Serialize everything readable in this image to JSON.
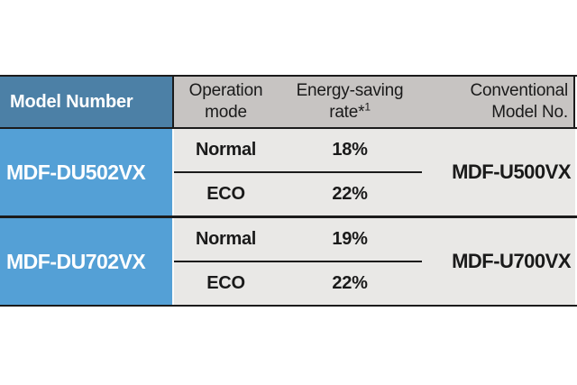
{
  "table": {
    "headers": {
      "model_number": "Model Number",
      "operation_mode_line1": "Operation",
      "operation_mode_line2": "mode",
      "energy_line1": "Energy-saving",
      "energy_line2_prefix": "rate*",
      "energy_footnote_sup": "1",
      "conventional_line1": "Conventional",
      "conventional_line2": "Model No."
    },
    "rows": [
      {
        "model": "MDF-DU502VX",
        "conventional": "MDF-U500VX",
        "modes": [
          {
            "label": "Normal",
            "rate": "18%"
          },
          {
            "label": "ECO",
            "rate": "22%"
          }
        ]
      },
      {
        "model": "MDF-DU702VX",
        "conventional": "MDF-U700VX",
        "modes": [
          {
            "label": "Normal",
            "rate": "19%"
          },
          {
            "label": "ECO",
            "rate": "22%"
          }
        ]
      }
    ],
    "colors": {
      "header_blue": "#4c80a6",
      "model_blue": "#54a0d6",
      "header_gray": "#c7c4c2",
      "cell_gray": "#e9e8e6",
      "border_dark": "#1b1b1b",
      "text_dark": "#1a1a1a",
      "text_white": "#ffffff"
    }
  }
}
